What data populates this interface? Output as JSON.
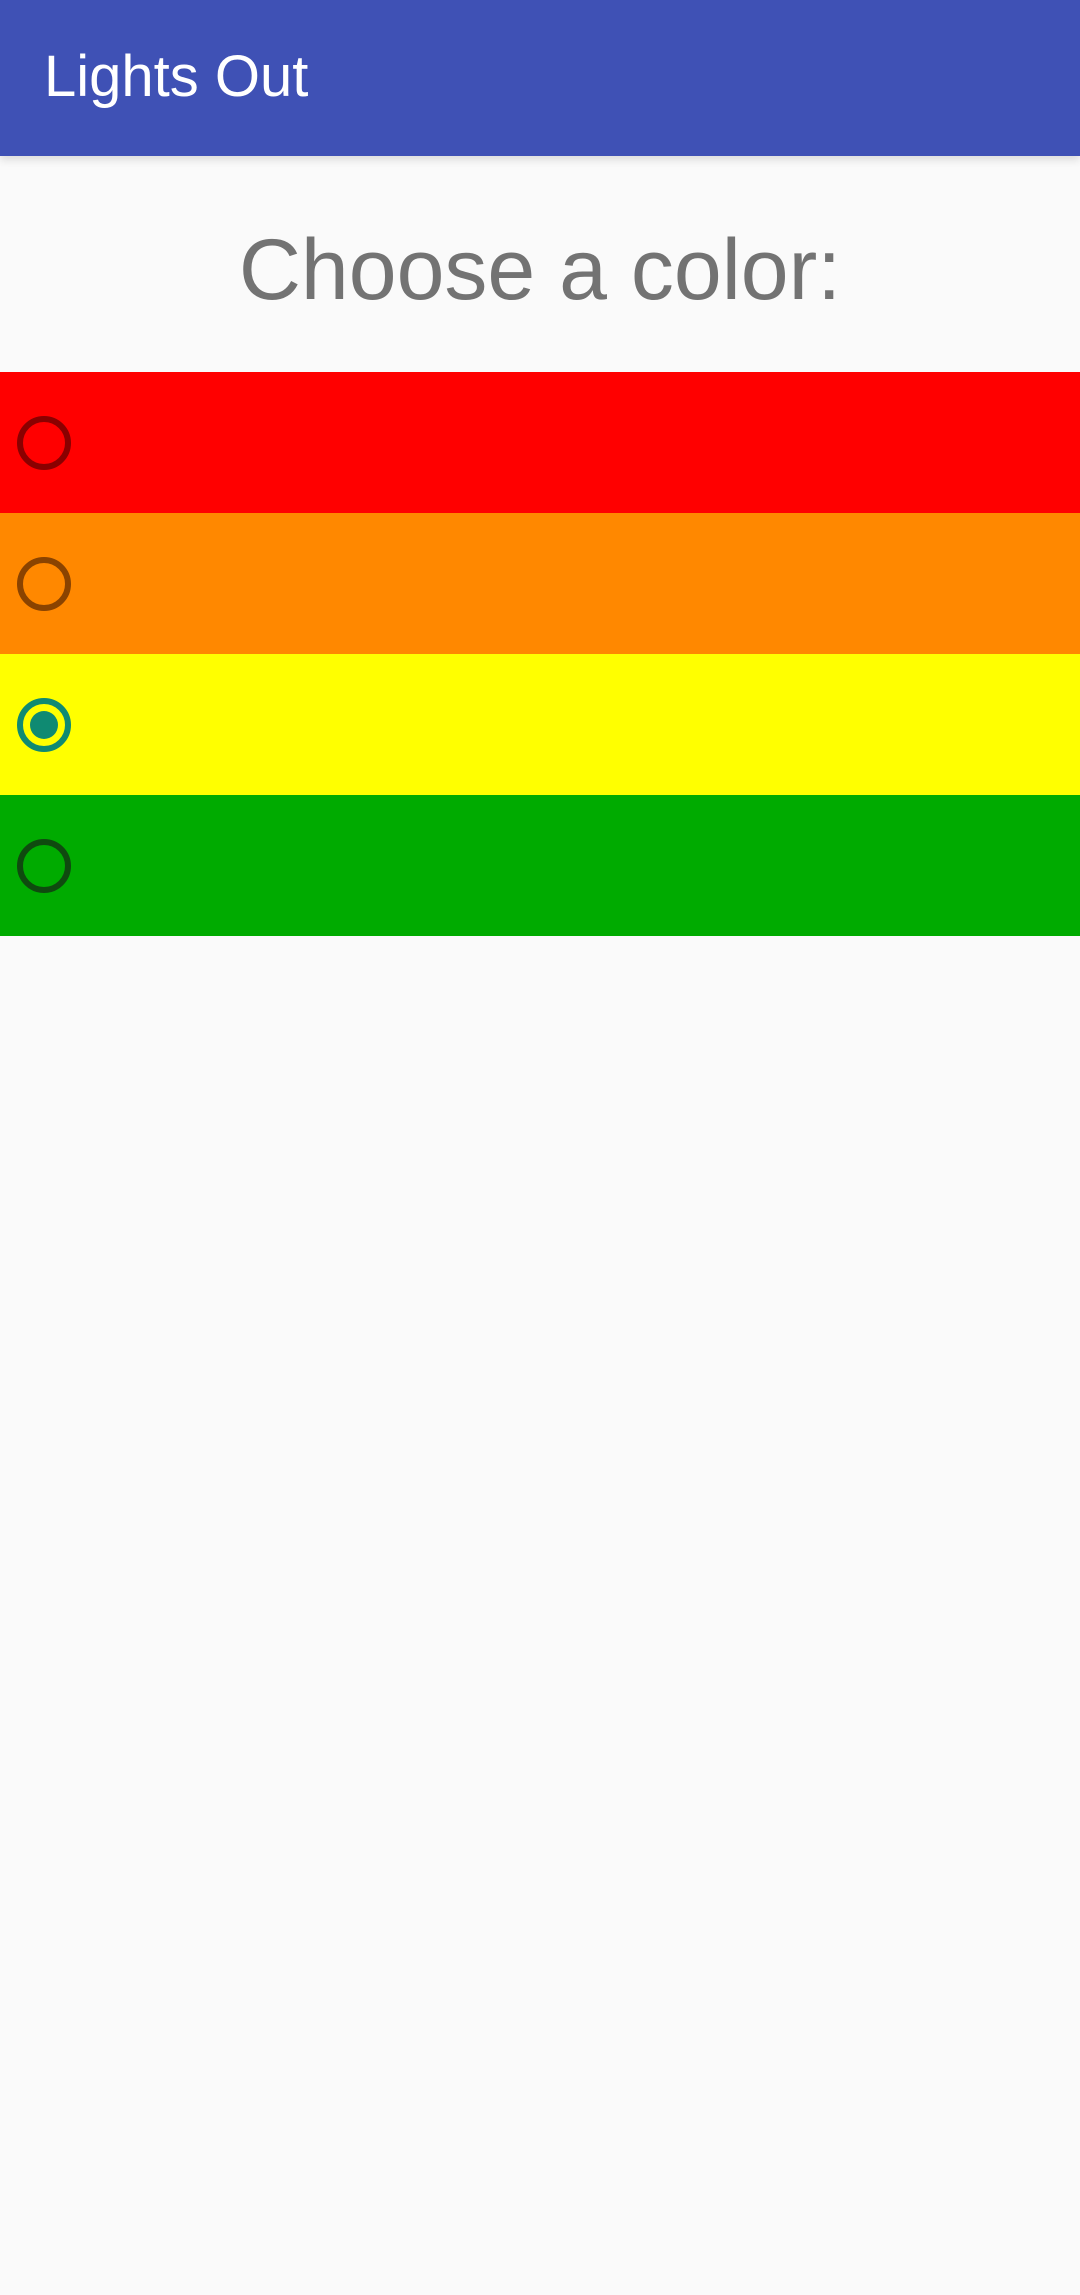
{
  "app_bar": {
    "title": "Lights Out",
    "background": "#3f51b5",
    "title_color": "#ffffff"
  },
  "prompt": {
    "text": "Choose a color:",
    "color": "#737373"
  },
  "color_options": [
    {
      "name": "red",
      "background": "#ff0000",
      "ring_color": "#8a0000",
      "selected": false
    },
    {
      "name": "orange",
      "background": "#ff8800",
      "ring_color": "#8a4300",
      "selected": false
    },
    {
      "name": "yellow",
      "background": "#ffff00",
      "ring_color": "#0f8a72",
      "selected": true,
      "dot_color": "#0f8a72"
    },
    {
      "name": "green",
      "background": "#00ab00",
      "ring_color": "#0f4a0f",
      "selected": false
    }
  ],
  "background": "#fafafa"
}
